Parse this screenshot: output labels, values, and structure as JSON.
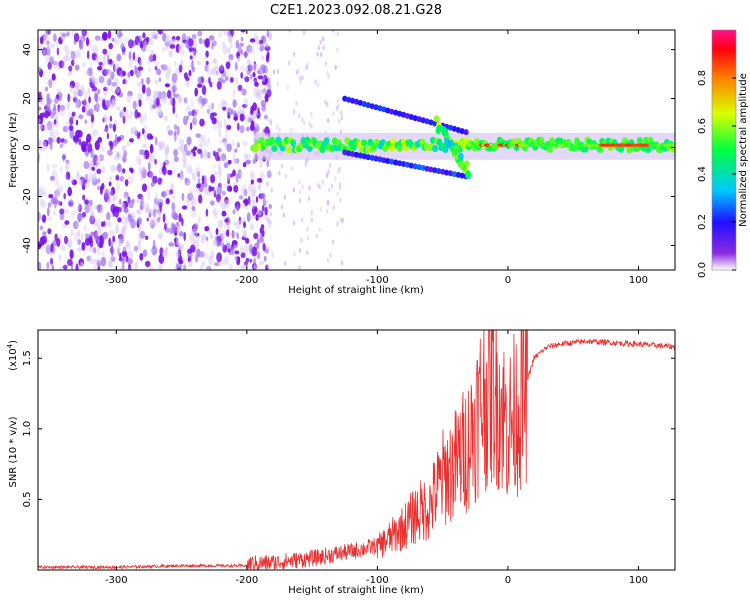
{
  "title": "C2E1.2023.092.08.21.G28",
  "colors": {
    "snr_line": "#e83030",
    "frame": "#000000",
    "spectral_base": "#8a2be2",
    "strip": "#00d060"
  },
  "chart_data": [
    {
      "type": "heatmap",
      "xlabel": "Height of straight line (km)",
      "ylabel": "Frequency (Hz)",
      "xlim": [
        -360,
        128
      ],
      "ylim": [
        -50,
        48
      ],
      "xticks": [
        -300,
        -200,
        -100,
        0,
        100
      ],
      "yticks": [
        -40,
        -20,
        0,
        20,
        40
      ],
      "colorbar": {
        "label": "Normalized spectral amplitude",
        "range": [
          0,
          1
        ],
        "ticks": [
          "0.0",
          "0.2",
          "0.4",
          "0.6",
          "0.8"
        ],
        "tick_values": [
          0.0,
          0.2,
          0.4,
          0.6,
          0.8
        ]
      },
      "features": [
        {
          "name": "noise",
          "x_range": [
            -360,
            -185
          ],
          "freq_range": [
            -50,
            48
          ],
          "amplitude": 0.15
        },
        {
          "name": "signal_band",
          "x_range": [
            -195,
            128
          ],
          "center_freq": 1,
          "amplitude": 0.5
        },
        {
          "name": "strong_line",
          "x_range": [
            -30,
            128
          ],
          "center_freq": 1,
          "amplitude": 0.85
        }
      ]
    },
    {
      "type": "line",
      "xlabel": "Height of straight line (km)",
      "ylabel": "SNR (10 * v/v)",
      "scale_label": "(x10",
      "scale_exp": "4",
      "xlim": [
        -360,
        128
      ],
      "ylim": [
        0,
        1.7
      ],
      "xticks": [
        -300,
        -200,
        -100,
        0,
        100
      ],
      "yticks": [
        0.5,
        1.0,
        1.5
      ],
      "ytick_labels": [
        "0.5",
        "1.0",
        "1.5"
      ],
      "series": [
        {
          "name": "SNR",
          "x": [
            -360,
            -300,
            -250,
            -200,
            -180,
            -150,
            -120,
            -100,
            -80,
            -70,
            -60,
            -50,
            -40,
            -30,
            -20,
            -10,
            0,
            10,
            20,
            30,
            40,
            60,
            80,
            100,
            128
          ],
          "values": [
            0.02,
            0.02,
            0.03,
            0.03,
            0.04,
            0.07,
            0.12,
            0.16,
            0.3,
            0.4,
            0.45,
            0.65,
            0.75,
            0.9,
            1.2,
            1.3,
            1.0,
            1.2,
            1.5,
            1.58,
            1.6,
            1.62,
            1.61,
            1.6,
            1.58
          ]
        }
      ]
    }
  ]
}
